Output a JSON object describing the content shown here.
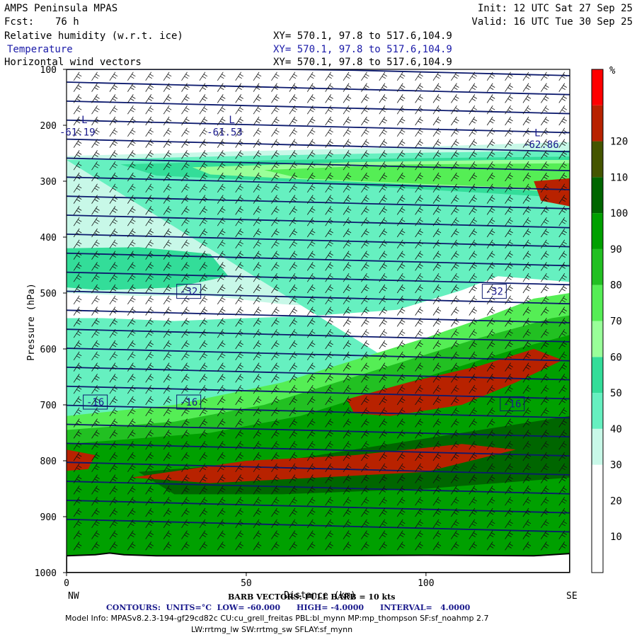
{
  "header": {
    "model": "AMPS Peninsula MPAS",
    "fcst_label": "Fcst:",
    "fcst_value": "76 h",
    "init": "Init: 12 UTC Sat 27 Sep 25",
    "valid": "Valid: 16 UTC Tue 30 Sep 25",
    "fields": [
      {
        "name": "Relative humidity (w.r.t. ice)",
        "xy": "XY= 570.1, 97.8 to 517.6,104.9"
      },
      {
        "name": "Temperature",
        "xy": "XY= 570.1, 97.8 to 517.6,104.9"
      },
      {
        "name": "Horizontal wind vectors",
        "xy": "XY= 570.1, 97.8 to 517.6,104.9"
      }
    ]
  },
  "footer": {
    "barb_note": "BARB VECTORS: FULL BARB = 10 kts",
    "contours": "CONTOURS:  UNITS=°C  LOW= -60.000      HIGH= -4.0000      INTERVAL=   4.0000",
    "model_info": "Model Info: MPASv8.2.3-194-gf29cd82c CU:cu_grell_freitas PBL:bl_mynn MP:mp_thompson SF:sf_noahmp 2.7",
    "model_info2": "LW:rrtmg_lw SW:rrtmg_sw SFLAY:sf_mynn"
  },
  "chart_data": {
    "type": "heatmap",
    "ylabel": "Pressure (hPa)",
    "xlabel": "Distance (km)",
    "xlim": [
      0,
      140
    ],
    "ylim": [
      1000,
      100
    ],
    "x_ticks": [
      0,
      50,
      100
    ],
    "y_ticks": [
      100,
      200,
      300,
      400,
      500,
      600,
      700,
      800,
      900,
      1000
    ],
    "endpoint_labels": {
      "left": "NW",
      "right": "SE"
    },
    "colorbar": {
      "unit": "%",
      "ticks": [
        10,
        20,
        30,
        40,
        50,
        60,
        70,
        80,
        90,
        100,
        110,
        120
      ],
      "colors": [
        "#ffffff",
        "#ffffff",
        "#ffffff",
        "#c8f8e8",
        "#66f0c0",
        "#33dd99",
        "#99ff99",
        "#55ee55",
        "#22c022",
        "#00a000",
        "#006600",
        "#445500",
        "#b82200",
        "#ff0000"
      ]
    },
    "temperature_contour_labels": [
      {
        "x": 5,
        "p": 190,
        "text": "L"
      },
      {
        "x": 3,
        "p": 212,
        "text": "-61.19"
      },
      {
        "x": 46,
        "p": 190,
        "text": "L"
      },
      {
        "x": 44,
        "p": 212,
        "text": "-61.53"
      },
      {
        "x": 131,
        "p": 213,
        "text": "L"
      },
      {
        "x": 132,
        "p": 234,
        "text": "-62.86"
      },
      {
        "x": 34,
        "p": 497,
        "text": "-32"
      },
      {
        "x": 119,
        "p": 497,
        "text": "-32"
      },
      {
        "x": 8,
        "p": 695,
        "text": "-16"
      },
      {
        "x": 34,
        "p": 695,
        "text": "-16"
      },
      {
        "x": 124,
        "p": 698,
        "text": "-16"
      }
    ]
  }
}
